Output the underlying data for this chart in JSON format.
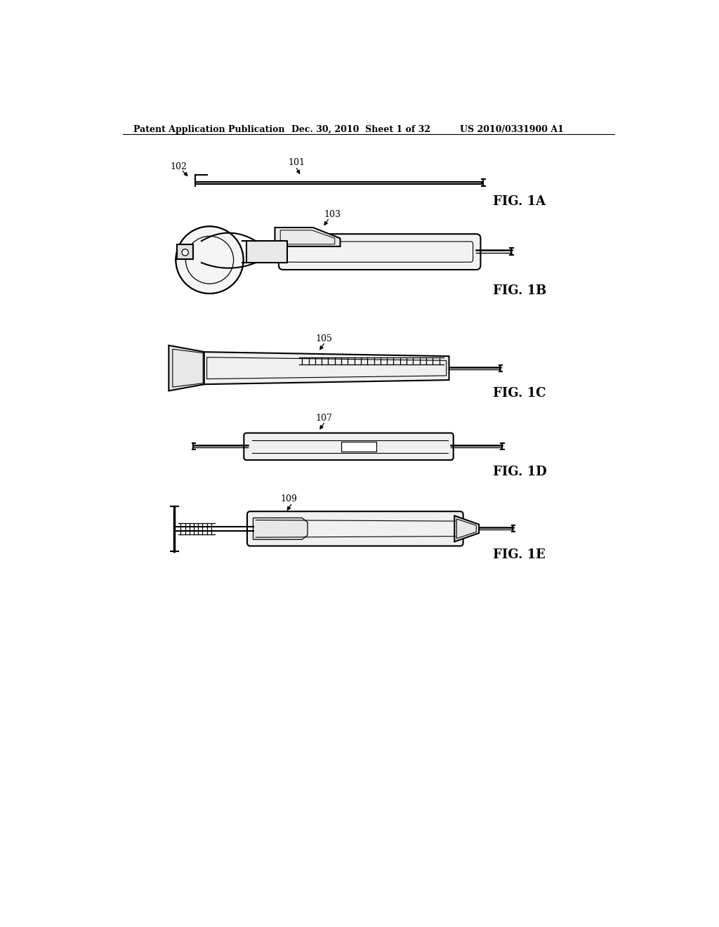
{
  "bg_color": "#ffffff",
  "text_color": "#000000",
  "header_left": "Patent Application Publication",
  "header_mid": "Dec. 30, 2010  Sheet 1 of 32",
  "header_right": "US 2010/0331900 A1",
  "fig_labels": [
    "FIG. 1A",
    "FIG. 1B",
    "FIG. 1C",
    "FIG. 1D",
    "FIG. 1E"
  ],
  "ref_labels": [
    "101",
    "102",
    "103",
    "105",
    "107",
    "109"
  ],
  "line_color": "#000000",
  "line_width": 1.5
}
